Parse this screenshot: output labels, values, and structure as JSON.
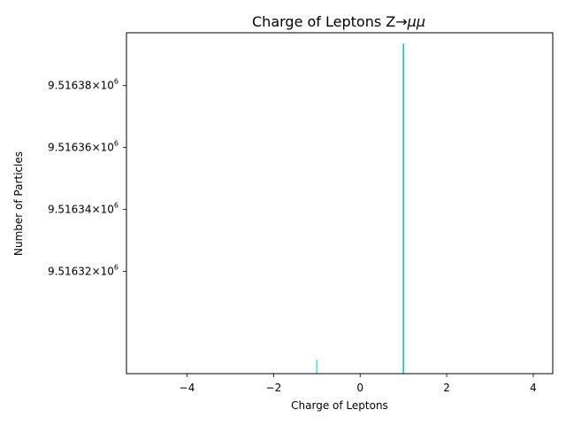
{
  "chart_data": {
    "type": "bar",
    "title": {
      "prefix": "Charge of Leptons Z",
      "arrow": "→",
      "suffix": "μμ"
    },
    "xlabel": "Charge of Leptons",
    "ylabel": "Number of Particles",
    "xlim": [
      -5.4,
      4.45
    ],
    "ylim": [
      9516287.0,
      9516397.0
    ],
    "y_scale": "log",
    "grid": false,
    "x_ticks": [
      {
        "value": -4,
        "label": "−4"
      },
      {
        "value": -2,
        "label": "−2"
      },
      {
        "value": 0,
        "label": "0"
      },
      {
        "value": 2,
        "label": "2"
      },
      {
        "value": 4,
        "label": "4"
      }
    ],
    "y_ticks": [
      {
        "value": 9516320.0,
        "mantissa": "9.51632",
        "times": "×",
        "base": "10",
        "exponent": "6"
      },
      {
        "value": 9516340.0,
        "mantissa": "9.51634",
        "times": "×",
        "base": "10",
        "exponent": "6"
      },
      {
        "value": 9516360.0,
        "mantissa": "9.51636",
        "times": "×",
        "base": "10",
        "exponent": "6"
      },
      {
        "value": 9516380.0,
        "mantissa": "9.51638",
        "times": "×",
        "base": "10",
        "exponent": "6"
      }
    ],
    "bars": [
      {
        "x": -1,
        "y": 9516291.5,
        "color": "#40e0d0"
      },
      {
        "x": 1,
        "y": 9516393.5,
        "color": "#00bfd6"
      }
    ],
    "bar_width": 0.03
  }
}
